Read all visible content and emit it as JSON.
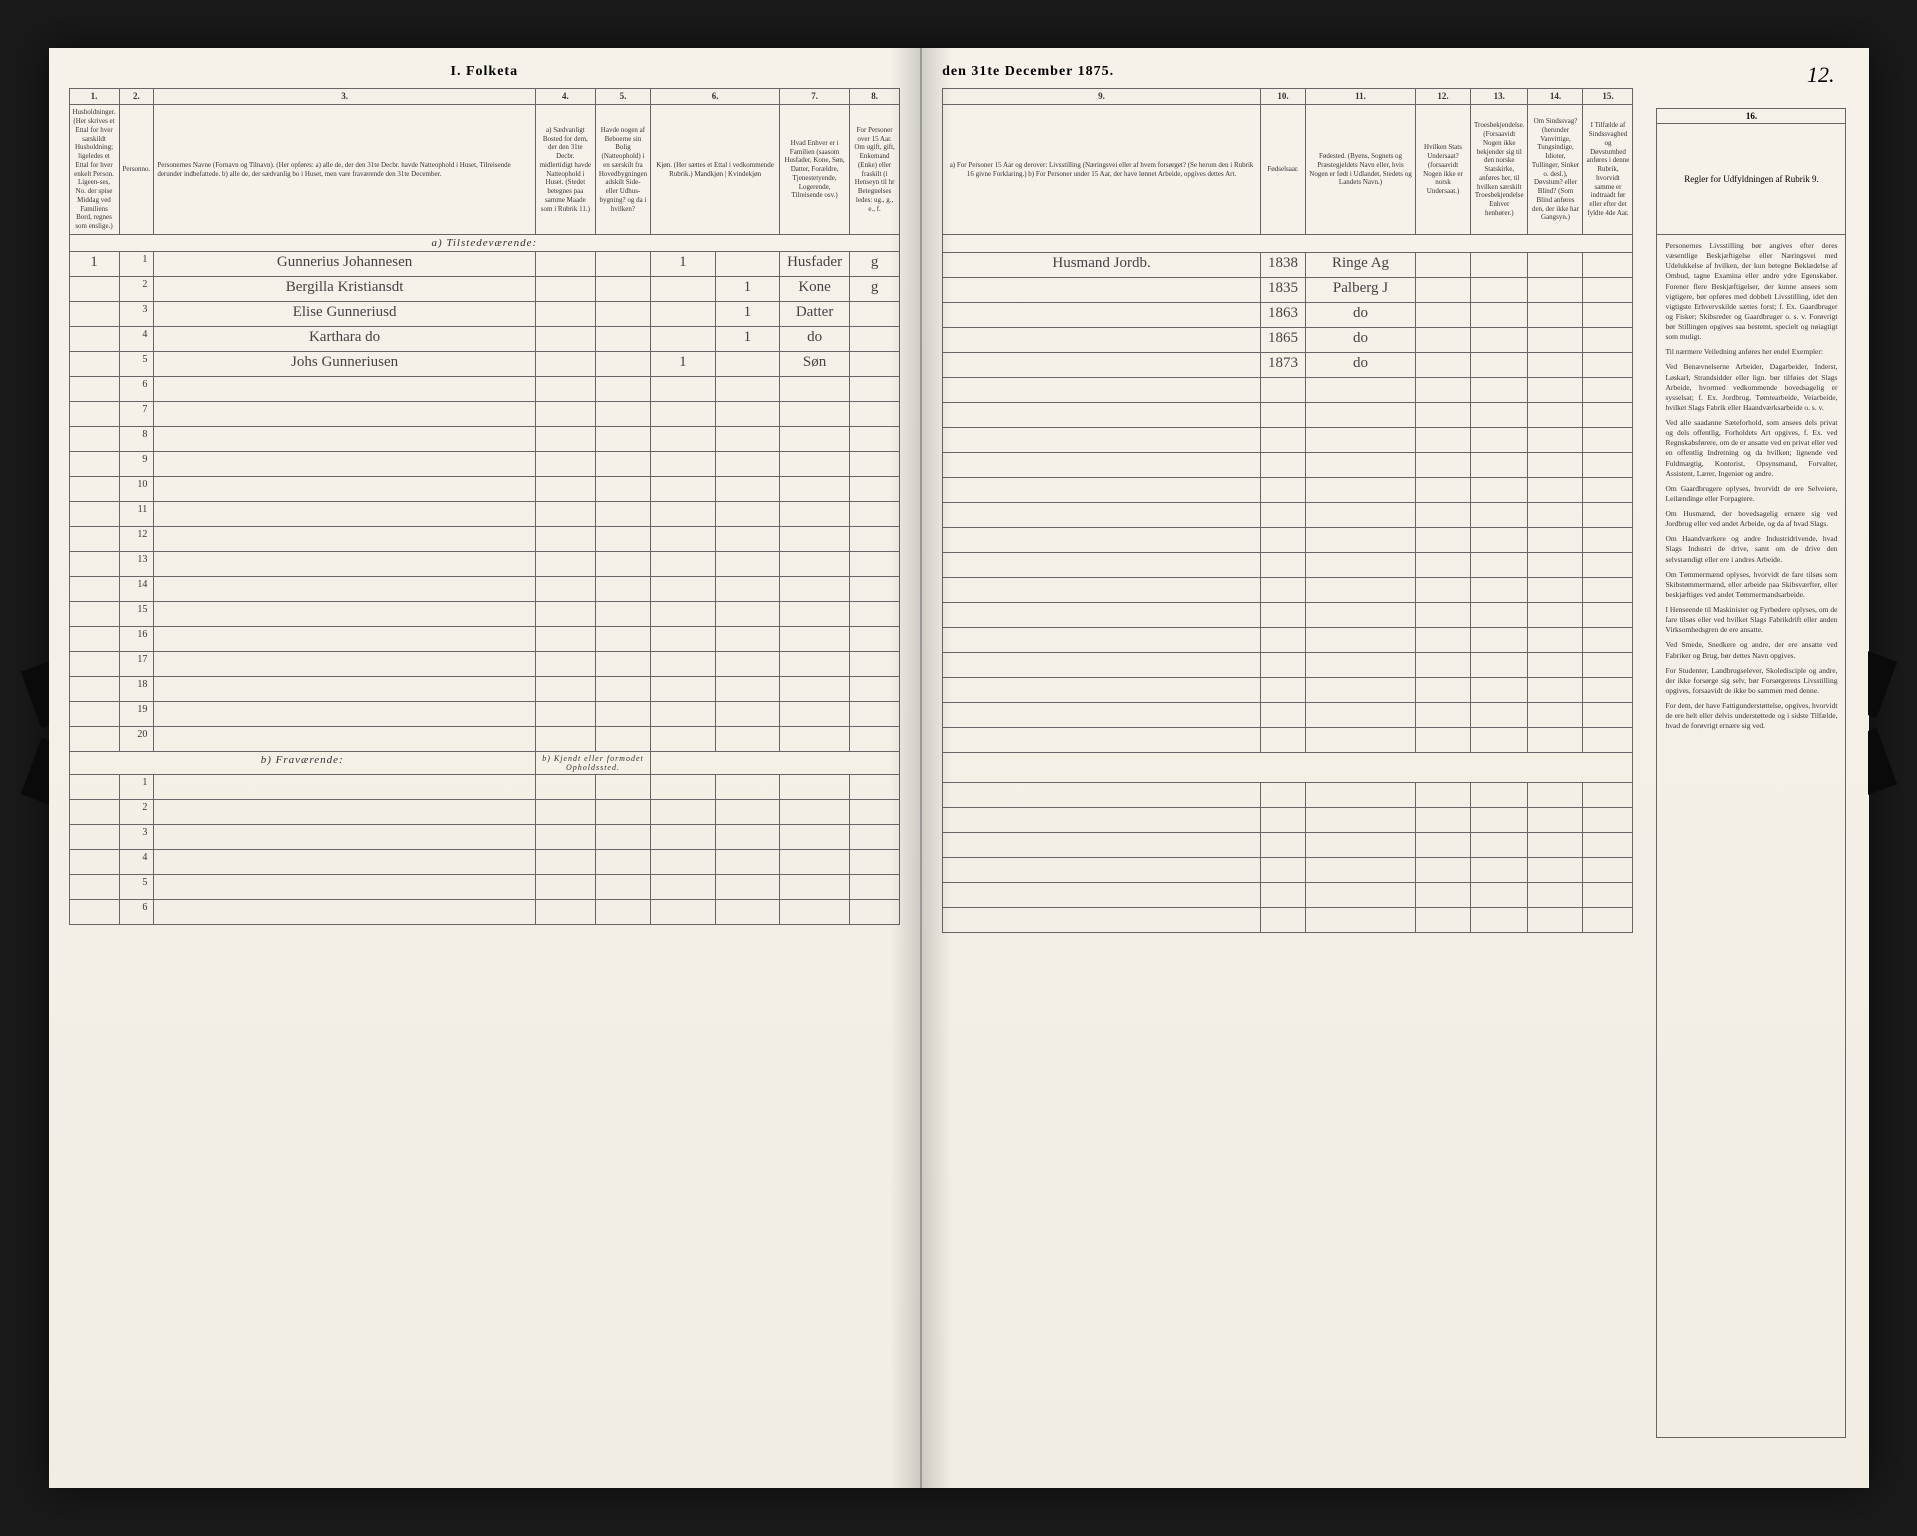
{
  "title_left": "I. Folketa",
  "title_right": "den 31te December 1875.",
  "page_number": "12.",
  "left_columns": {
    "nums": [
      "1.",
      "2.",
      "3.",
      "4.",
      "5.",
      "6.",
      "7.",
      "8."
    ],
    "headers": [
      "Husholdninger. (Her skrives et Ettal for hver sarskildt Husholdning; ligeledes et Ettal for hver enkelt Person. Ligeen-ses, No. der spise Middag ved Familiens Bord, regnes som enslige.)",
      "Personno.",
      "Personernes Navne (Fornavn og Tilnavn).\n(Her opføres:\na) alle de, der den 31te Decbr. havde Natteophold i Huset, Tilreisende derunder indbefattede.\nb) alle de, der sædvanlig bo i Huset, men vare fraværende den 31te December.",
      "a) Sædvanligt Bosted for dem, der den 31te Decbr. midlertidigt havde Natteophold i Huset. (Stedet betegnes paa samme Maade som i Rubrik 11.)",
      "Havde nogen af Beboerne sin Bolig (Natteophold) i en særskilt fra Hovedbygningen adskilt Side- eller Udhus-bygning? og da i hvilken?",
      "Kjøn. (Her sættes et Ettal i vedkommende Rubrik.) Mandkjøn | Kvindekjøn",
      "Hvad Enhver er i Familien (saasom Husfader, Kone, Søn, Datter, Forældre, Tjenestetyende, Logerende, Tilreisende osv.)",
      "For Personer over 15 Aar. Om ugift, gift, Enkemand (Enke) eller fraskilt (i Henseyn til hr Betegnelses ledes: ug., g., e., f."
    ]
  },
  "right_columns": {
    "nums": [
      "9.",
      "10.",
      "11.",
      "12.",
      "13.",
      "14.",
      "15.",
      "16."
    ],
    "headers": [
      "a) For Personer 15 Aar og derover: Livsstilling (Næringsvei eller af hvem forsørget? (Se herom den i Rubrik 16 givne Forklaring.)\nb) For Personer under 15 Aar, der have lønnet Arbeide, opgives dettes Art.",
      "Fødselsaar.",
      "Fødested.\n(Byens, Sognets og Præstegjeldets Navn eller, hvis Nogen er født i Udlandet, Stedets og Landets Navn.)",
      "Hvilken Stats Undersaat?\n(forsaavidt Nogen ikke er norsk Undersaat.)",
      "Troesbekjendelse.\n(Forsaavidt Nogen ikke bekjender sig til den norske Statskirke, anføres her, til hvilken særskilt Troesbekjendelse Enhver henhører.)",
      "Om Sindssvag? (herunder Vanvittige, Tungsindige, Idioter, Tullinger, Sinker o. desl.), Døvstum? eller Blind?\n(Som Blind anføres den, der ikke har Gangsyn.)",
      "I Tilfælde af Sindssvaghed og Døvstumhed anføres i denne Rubrik, hvorvidt samme er indtraadt før eller efter det fyldte 4de Aar.",
      "Regler for Udfyldningen af Rubrik 9."
    ]
  },
  "section_a": "a) Tilstedeværende:",
  "section_b": "b) Fraværende:",
  "section_b_note": "b) Kjendt eller formodet Opholdssted.",
  "rows": [
    {
      "n": "1",
      "name": "Gunnerius Johannesen",
      "k": "1",
      "m": "",
      "rel": "Husfader",
      "cs": "g",
      "occ": "Husmand Jordb.",
      "yr": "1838",
      "bp": "Ringe Ag"
    },
    {
      "n": "2",
      "name": "Bergilla Kristiansdt",
      "k": "",
      "m": "1",
      "rel": "Kone",
      "cs": "g",
      "occ": "",
      "yr": "1835",
      "bp": "Palberg J"
    },
    {
      "n": "3",
      "name": "Elise Gunneriusd",
      "k": "",
      "m": "1",
      "rel": "Datter",
      "cs": "",
      "occ": "",
      "yr": "1863",
      "bp": "do"
    },
    {
      "n": "4",
      "name": "Karthara do",
      "k": "",
      "m": "1",
      "rel": "do",
      "cs": "",
      "occ": "",
      "yr": "1865",
      "bp": "do"
    },
    {
      "n": "5",
      "name": "Johs Gunneriusen",
      "k": "1",
      "m": "",
      "rel": "Søn",
      "cs": "",
      "occ": "",
      "yr": "1873",
      "bp": "do"
    }
  ],
  "rules": {
    "title": "Regler for Udfyldningen\naf\nRubrik 9.",
    "body": [
      "Personernes Livsstilling bør angives efter deres væsentlige Beskjæftigelse eller Næringsvei med Udelukkelse af hvilken, der kun betegne Beklædelse af Ombud, tagne Examina eller andre ydre Egenskaber. Forener flere Beskjæftigelser, der kunne ansees som vigtigere, bør opføres med dobbelt Livsstilling, idet den vigtigste Erhvervskilde sættes forst; f. Ex. Gaardbruger og Fisker; Skibsreder og Gaardbruger o. s. v. Forøvrigt bør Stillingen opgives saa bestemt, specielt og nøiagtigt som muligt.",
      "Til nærmere Veiledning anføres her endel Exempler:",
      "Ved Benævnelserne Arbei­der, Dagarbeider, Inderst, Løskarl, Strandsidder eller lign. bør tilføies det Slags Arbeide, hvormed vedkommende hovedsagelig er sysselsat; f. Ex. Jordbrug, Tømtearbeide, Veiarbeide, hvilket Slags Fabrik eller Haandværksarbeide o. s. v.",
      "Ved alle saadanne Sæ­teforhold, som ansees dels privat og dels offentlig, Forholdets Art opgives, f. Ex. ved Regnskabsførere, om de er ansatte ved en privat eller ved en offentlig Indretning og da hvilken; lignende ved Fuldmægtig, Kontorist, Opsyns­mand, Forvalter, Assistent, Lærer, Ingeniør og andre.",
      "Om Gaardbrugere oplyses, hvorvidt de ere Selveiere, Leilændinge eller Forpagtere.",
      "Om Husmænd, der hovedsagelig ernære sig ved Jordbrug eller ved andet Arbeide, og da af hvad Slags.",
      "Om Haandværkere og andre Industridrivende, hvad Slags Industri de drive, samt om de drive den selvstændigt eller ere i andres Arbeide.",
      "Om Tømmermænd oplyses, hvorvidt de fare tilsøs som Skibstømmermænd, eller arbeide paa Skibsværfter, eller beskjæftiges ved andet Tømmermandsarbeide.",
      "I Henseende til Maskinister og Fyrbødere oplyses, om de fare tilsøs eller ved hvilket Slags Fabrikdrift eller anden Virksomhedsgren de ere ansatte.",
      "Ved Smede, Snedkere og andre, der ere ansatte ved Fabriker og Brug, bør dettes Navn opgives.",
      "For Studenter, Landbrugs­elever, Skole­disciple og andre, der ikke forsørge sig selv, bør Forsørgerens Livs­stilling opgives, forsaavidt de ikke bo sammen med denne.",
      "For dem, der have Fattig­understøttelse, opgives, hvorvidt de ere helt eller delvis understøttede og i sidste Tilfælde, hvad de forøvrigt ernære sig ved."
    ]
  }
}
